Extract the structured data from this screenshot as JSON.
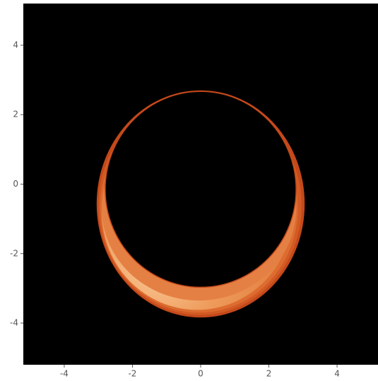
{
  "chart_data": {
    "type": "image",
    "xlim": [
      -5.2,
      5.2
    ],
    "ylim": [
      -5.2,
      5.2
    ],
    "xticks": [
      -4,
      -2,
      0,
      2,
      4
    ],
    "yticks": [
      -4,
      -2,
      0,
      2,
      4
    ]
  }
}
